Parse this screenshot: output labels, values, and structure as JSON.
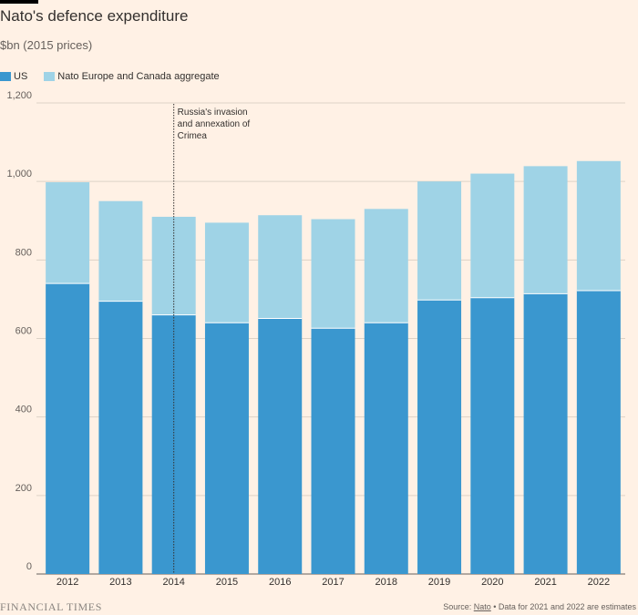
{
  "header": {
    "title": "Nato's defence expenditure",
    "subtitle": "$bn (2015 prices)"
  },
  "legend": {
    "items": [
      {
        "label": "US",
        "color": "#3a97cf"
      },
      {
        "label": "Nato Europe and Canada aggregate",
        "color": "#9fd3e6"
      }
    ]
  },
  "footer": {
    "brand": "FINANCIAL TIMES",
    "source_prefix": "Source: ",
    "source_link": "Nato",
    "source_note": " • Data for 2021 and 2022 are estimates"
  },
  "chart_data": {
    "type": "bar",
    "stacked": true,
    "title": "Nato's defence expenditure",
    "subtitle": "$bn (2015 prices)",
    "categories": [
      "2012",
      "2013",
      "2014",
      "2015",
      "2016",
      "2017",
      "2018",
      "2019",
      "2020",
      "2021",
      "2022"
    ],
    "series": [
      {
        "name": "US",
        "color": "#3a97cf",
        "values": [
          740,
          695,
          660,
          640,
          651,
          626,
          640,
          698,
          704,
          714,
          722
        ]
      },
      {
        "name": "Nato Europe and Canada aggregate",
        "color": "#9fd3e6",
        "values": [
          258,
          255,
          250,
          255,
          263,
          278,
          290,
          302,
          316,
          325,
          330
        ]
      }
    ],
    "ylim": [
      0,
      1200
    ],
    "yticks": [
      0,
      200,
      400,
      600,
      800,
      "1,000",
      "1,200"
    ],
    "ytick_values": [
      0,
      200,
      400,
      600,
      800,
      1000,
      1200
    ],
    "grid": true,
    "annotation": {
      "x": "2014",
      "lines": [
        "Russia's invasion",
        "and annexation of",
        "Crimea"
      ]
    }
  }
}
